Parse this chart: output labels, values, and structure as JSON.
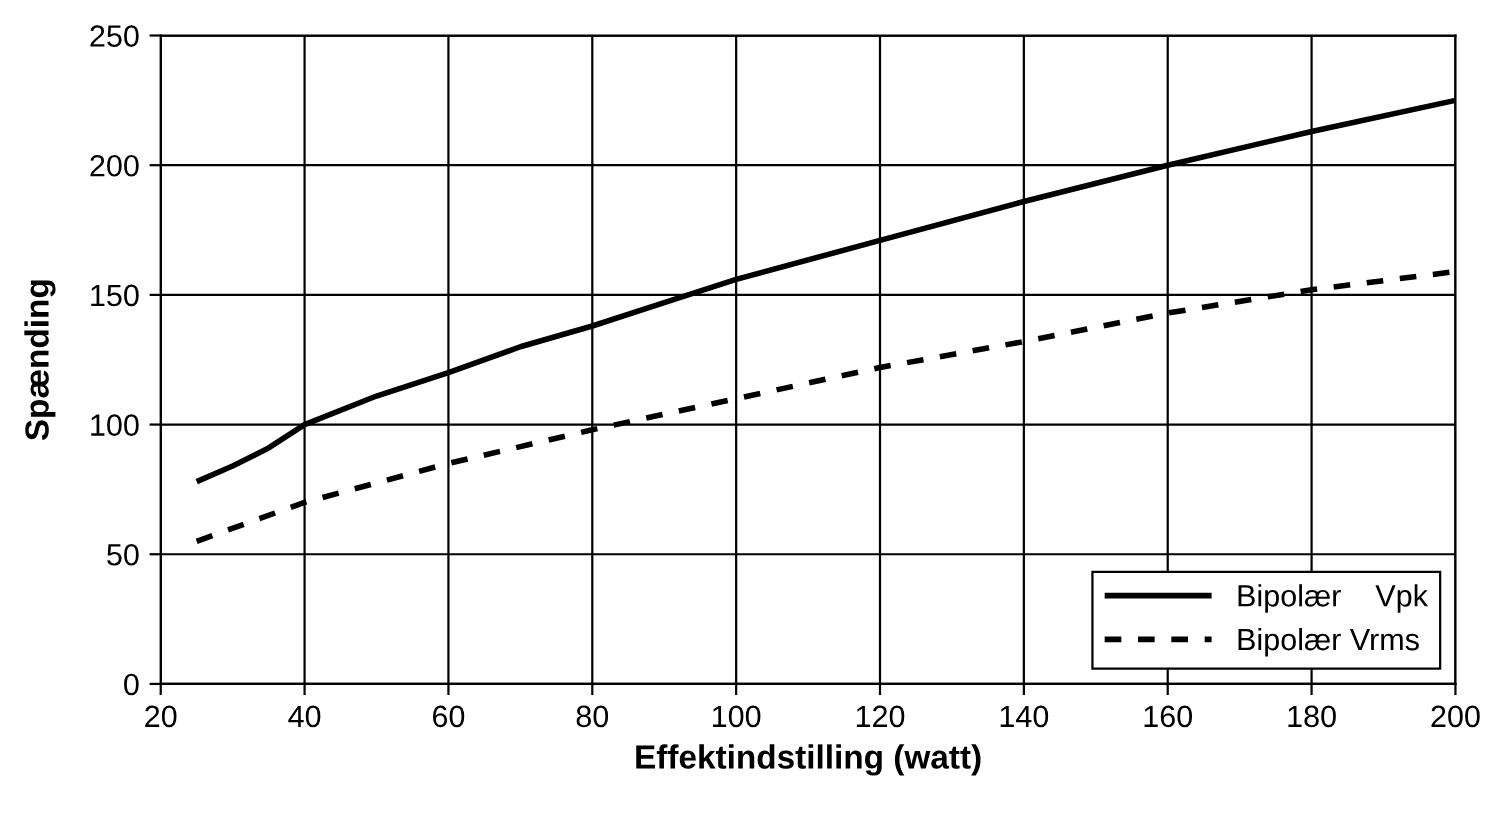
{
  "chart_data": {
    "type": "line",
    "xlabel": "Effektindstilling (watt)",
    "ylabel": "Spænding",
    "xlim": [
      20,
      200
    ],
    "xticks": [
      20,
      40,
      60,
      80,
      100,
      120,
      140,
      160,
      180,
      200
    ],
    "ylim": [
      0,
      250
    ],
    "yticks": [
      0,
      50,
      100,
      150,
      200,
      250
    ],
    "grid": true,
    "legend": "bottom right",
    "series": [
      {
        "name": "Bipolær    Vpk",
        "color": "#000000",
        "line_style": "solid",
        "x": [
          25,
          30,
          35,
          40,
          50,
          60,
          70,
          80,
          90,
          100,
          120,
          140,
          160,
          180,
          200
        ],
        "values": [
          78,
          84,
          91,
          100,
          111,
          120,
          130,
          138,
          147,
          156,
          171,
          186,
          200,
          213,
          225
        ]
      },
      {
        "name": "Bipolær Vrms",
        "color": "#000000",
        "line_style": "dashed",
        "x": [
          25,
          40,
          60,
          80,
          100,
          120,
          140,
          160,
          180,
          200
        ],
        "values": [
          55,
          70,
          85,
          98,
          110,
          122,
          132,
          143,
          152,
          159
        ]
      }
    ]
  }
}
